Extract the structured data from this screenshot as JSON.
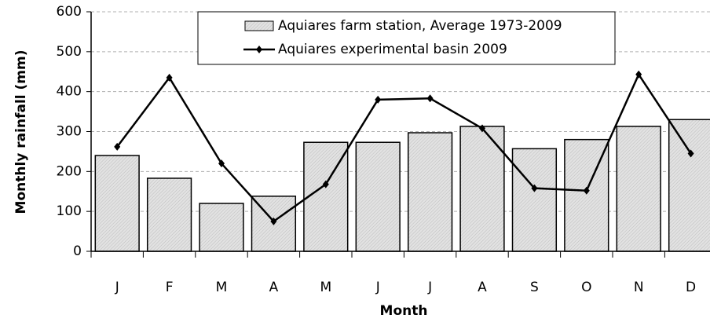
{
  "chart_data": {
    "type": "combo",
    "categories": [
      "J",
      "F",
      "M",
      "A",
      "M",
      "J",
      "J",
      "A",
      "S",
      "O",
      "N",
      "D"
    ],
    "x_label": "Month",
    "y_label": "Monthly rainfall (mm)",
    "ylim": [
      0,
      600
    ],
    "yticks": [
      0,
      100,
      200,
      300,
      400,
      500,
      600
    ],
    "grid": true,
    "legend": "top",
    "series": [
      {
        "name": "Aquiares farm station, Average 1973-2009",
        "type": "bar",
        "color": "#e0e0e0",
        "values": [
          240,
          183,
          120,
          138,
          273,
          273,
          297,
          313,
          257,
          280,
          313,
          330
        ]
      },
      {
        "name": "Aquiares experimental basin 2009",
        "type": "line",
        "color": "#000000",
        "values": [
          262,
          435,
          220,
          75,
          168,
          380,
          383,
          308,
          158,
          152,
          443,
          245
        ]
      }
    ]
  }
}
